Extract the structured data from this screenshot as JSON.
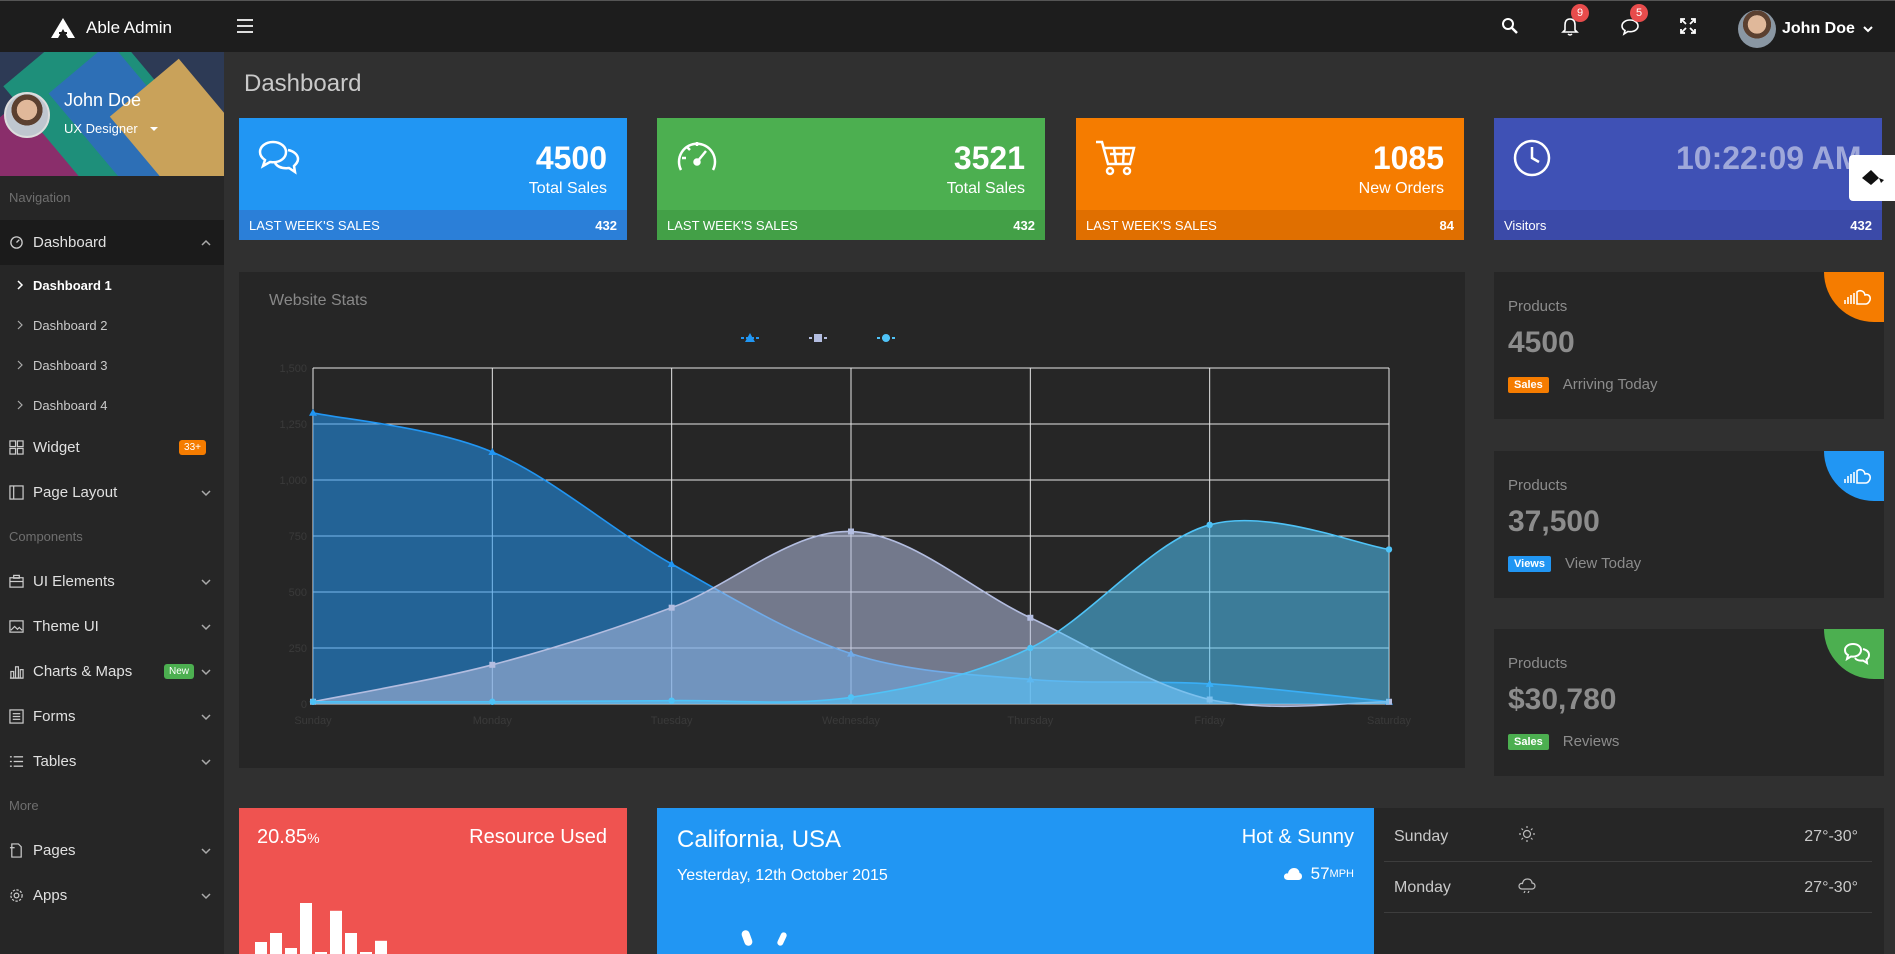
{
  "app": {
    "name": "Able Admin"
  },
  "topbar": {
    "notifications_count": "9",
    "messages_count": "5",
    "user_name": "John Doe"
  },
  "sidebar": {
    "profile": {
      "name": "John Doe",
      "role": "UX Designer"
    },
    "sections": {
      "navigation": "Navigation",
      "components": "Components",
      "more": "More"
    },
    "dashboard": {
      "label": "Dashboard",
      "sub": [
        "Dashboard 1",
        "Dashboard 2",
        "Dashboard 3",
        "Dashboard 4"
      ]
    },
    "widget": {
      "label": "Widget",
      "badge": "33+"
    },
    "page_layout": "Page Layout",
    "ui_elements": "UI Elements",
    "theme_ui": "Theme UI",
    "charts_maps": {
      "label": "Charts & Maps",
      "badge": "New"
    },
    "forms": "Forms",
    "tables": "Tables",
    "pages": "Pages",
    "apps": "Apps"
  },
  "page": {
    "title": "Dashboard"
  },
  "stat_cards": [
    {
      "value": "4500",
      "label": "Total Sales",
      "footer_label": "LAST WEEK'S SALES",
      "footer_value": "432",
      "color": "#2196f3",
      "footer_color": "#2b7fd8",
      "icon": "chat-bubbles-icon"
    },
    {
      "value": "3521",
      "label": "Total Sales",
      "footer_label": "LAST WEEK'S SALES",
      "footer_value": "432",
      "color": "#4caf50",
      "footer_color": "#43a047",
      "icon": "speedometer-icon"
    },
    {
      "value": "1085",
      "label": "New Orders",
      "footer_label": "LAST WEEK'S SALES",
      "footer_value": "84",
      "color": "#f57c00",
      "footer_color": "#e06f00",
      "icon": "cart-icon"
    },
    {
      "value": "10:22:09 AM",
      "label": "",
      "footer_label": "Visitors",
      "footer_value": "432",
      "color": "#3f51b5",
      "footer_color": "#3b4aa8",
      "icon": "clock-icon"
    }
  ],
  "website_stats": {
    "title": "Website Stats",
    "chart_data": {
      "type": "area",
      "categories": [
        "Sunday",
        "Monday",
        "Tuesday",
        "Wednesday",
        "Thursday",
        "Friday",
        "Saturday"
      ],
      "ylim": [
        0,
        1500
      ],
      "y_ticks": [
        0,
        250,
        500,
        750,
        1000,
        1250,
        1500
      ],
      "grid": true,
      "legend_position": "top",
      "series": [
        {
          "marker": "triangle",
          "color": "#2196f3",
          "values": [
            1300,
            1125,
            625,
            225,
            110,
            90,
            10
          ]
        },
        {
          "marker": "square",
          "color": "#b3bde0",
          "values": [
            10,
            175,
            430,
            770,
            385,
            20,
            10
          ]
        },
        {
          "marker": "circle",
          "color": "#4fc3f7",
          "values": [
            10,
            10,
            15,
            30,
            250,
            800,
            690
          ]
        }
      ]
    }
  },
  "product_cards": [
    {
      "tag": "Products",
      "value": "4500",
      "badge": "Sales",
      "badge_color": "#f57c00",
      "caption": "Arriving Today",
      "corner_color": "#f57c00",
      "icon": "soundcloud-icon"
    },
    {
      "tag": "Products",
      "value": "37,500",
      "badge": "Views",
      "badge_color": "#2196f3",
      "caption": "View Today",
      "corner_color": "#2196f3",
      "icon": "soundcloud-icon"
    },
    {
      "tag": "Products",
      "value": "$30,780",
      "badge": "Sales",
      "badge_color": "#4caf50",
      "caption": "Reviews",
      "corner_color": "#4caf50",
      "icon": "chat-bubbles-icon"
    }
  ],
  "resource": {
    "percent": "20.85",
    "unit": "%",
    "title": "Resource Used",
    "bars": [
      0.2,
      0.35,
      0.1,
      0.85,
      0.0,
      0.72,
      0.35,
      0.0,
      0.22
    ]
  },
  "weather": {
    "city": "California, USA",
    "date": "Yesterday, 12th October 2015",
    "condition": "Hot & Sunny",
    "wind": "57",
    "wind_unit": "MPH"
  },
  "forecast": [
    {
      "day": "Sunday",
      "temp": "27°-30°",
      "icon": "sun-icon"
    },
    {
      "day": "Monday",
      "temp": "27°-30°",
      "icon": "cloud-icon"
    }
  ]
}
